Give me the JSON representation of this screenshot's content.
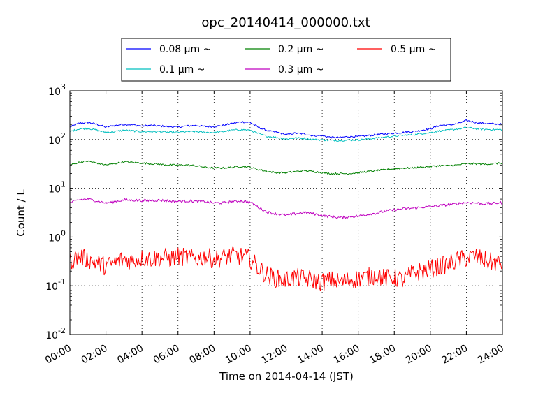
{
  "chart_data": {
    "type": "line",
    "title": "opc_20140414_000000.txt",
    "xlabel": "Time on 2014-04-14 (JST)",
    "ylabel": "Count / L",
    "x_tick_labels": [
      "00:00",
      "02:00",
      "04:00",
      "06:00",
      "08:00",
      "10:00",
      "12:00",
      "14:00",
      "16:00",
      "18:00",
      "20:00",
      "22:00",
      "24:00"
    ],
    "y_tick_labels": [
      {
        "base": "10",
        "exp": "-2"
      },
      {
        "base": "10",
        "exp": "-1"
      },
      {
        "base": "10",
        "exp": "0"
      },
      {
        "base": "10",
        "exp": "1"
      },
      {
        "base": "10",
        "exp": "2"
      },
      {
        "base": "10",
        "exp": "3"
      }
    ],
    "xlim_hours": [
      0,
      24
    ],
    "ylim": [
      0.01,
      1000
    ],
    "yscale": "log",
    "grid": true,
    "legend_position": "above plot, centered",
    "series": [
      {
        "name": "0.08 μm ~",
        "color": "#0000ff",
        "x": [
          0,
          0.5,
          1,
          1.5,
          2,
          2.5,
          3,
          3.5,
          4,
          4.5,
          5,
          5.5,
          6,
          6.5,
          7,
          7.5,
          8,
          8.5,
          9,
          9.5,
          10,
          10.5,
          11,
          11.5,
          12,
          12.5,
          13,
          13.5,
          14,
          14.5,
          15,
          15.5,
          16,
          16.5,
          17,
          17.5,
          18,
          18.5,
          19,
          19.5,
          20,
          20.5,
          21,
          21.5,
          22,
          22.5,
          23,
          23.5,
          24
        ],
        "values": [
          180,
          215,
          225,
          205,
          180,
          195,
          205,
          200,
          190,
          195,
          190,
          185,
          180,
          190,
          195,
          185,
          185,
          195,
          215,
          230,
          225,
          175,
          150,
          140,
          125,
          135,
          130,
          120,
          120,
          110,
          110,
          115,
          115,
          120,
          125,
          130,
          135,
          140,
          145,
          155,
          165,
          195,
          200,
          210,
          245,
          225,
          215,
          210,
          205
        ]
      },
      {
        "name": "0.1 μm ~",
        "color": "#00bfbf",
        "x": [
          0,
          0.5,
          1,
          1.5,
          2,
          2.5,
          3,
          3.5,
          4,
          4.5,
          5,
          5.5,
          6,
          6.5,
          7,
          7.5,
          8,
          8.5,
          9,
          9.5,
          10,
          10.5,
          11,
          11.5,
          12,
          12.5,
          13,
          13.5,
          14,
          14.5,
          15,
          15.5,
          16,
          16.5,
          17,
          17.5,
          18,
          18.5,
          19,
          19.5,
          20,
          20.5,
          21,
          21.5,
          22,
          22.5,
          23,
          23.5,
          24
        ],
        "values": [
          145,
          165,
          170,
          155,
          140,
          145,
          155,
          150,
          145,
          145,
          145,
          140,
          140,
          145,
          145,
          140,
          140,
          145,
          155,
          160,
          155,
          130,
          115,
          110,
          102,
          108,
          105,
          100,
          98,
          96,
          95,
          97,
          98,
          102,
          107,
          112,
          117,
          122,
          125,
          132,
          138,
          150,
          155,
          165,
          175,
          168,
          162,
          160,
          160
        ]
      },
      {
        "name": "0.2 μm ~",
        "color": "#008000",
        "x": [
          0,
          0.5,
          1,
          1.5,
          2,
          2.5,
          3,
          3.5,
          4,
          4.5,
          5,
          5.5,
          6,
          6.5,
          7,
          7.5,
          8,
          8.5,
          9,
          9.5,
          10,
          10.5,
          11,
          11.5,
          12,
          12.5,
          13,
          13.5,
          14,
          14.5,
          15,
          15.5,
          16,
          16.5,
          17,
          17.5,
          18,
          18.5,
          19,
          19.5,
          20,
          20.5,
          21,
          21.5,
          22,
          22.5,
          23,
          23.5,
          24
        ],
        "values": [
          30,
          34,
          36,
          33,
          30,
          32,
          35,
          34,
          33,
          32,
          31,
          30,
          30,
          30,
          29,
          27,
          26,
          26,
          27,
          28,
          27,
          24,
          22,
          21,
          21,
          22,
          23,
          22,
          21,
          20,
          20,
          20,
          21,
          22,
          23,
          24,
          25,
          26,
          26,
          27,
          28,
          29,
          29,
          30,
          32,
          32,
          31,
          32,
          33
        ]
      },
      {
        "name": "0.3 μm ~",
        "color": "#bf00bf",
        "x": [
          0,
          0.5,
          1,
          1.5,
          2,
          2.5,
          3,
          3.5,
          4,
          4.5,
          5,
          5.5,
          6,
          6.5,
          7,
          7.5,
          8,
          8.5,
          9,
          9.5,
          10,
          10.5,
          11,
          11.5,
          12,
          12.5,
          13,
          13.5,
          14,
          14.5,
          15,
          15.5,
          16,
          16.5,
          17,
          17.5,
          18,
          18.5,
          19,
          19.5,
          20,
          20.5,
          21,
          21.5,
          22,
          22.5,
          23,
          23.5,
          24
        ],
        "values": [
          5.0,
          5.8,
          6.0,
          5.5,
          5.0,
          5.3,
          5.8,
          5.7,
          5.6,
          5.6,
          5.7,
          5.5,
          5.4,
          5.5,
          5.4,
          5.3,
          5.0,
          5.0,
          5.3,
          5.5,
          5.2,
          4.0,
          3.2,
          3.0,
          2.8,
          3.0,
          3.2,
          3.0,
          2.8,
          2.6,
          2.5,
          2.6,
          2.7,
          2.9,
          3.1,
          3.4,
          3.6,
          3.8,
          3.9,
          4.1,
          4.2,
          4.4,
          4.6,
          4.8,
          5.1,
          5.0,
          4.8,
          4.9,
          5.1
        ]
      },
      {
        "name": "0.5 μm ~",
        "color": "#ff0000",
        "x": [
          0,
          0.5,
          1,
          1.5,
          2,
          2.5,
          3,
          3.5,
          4,
          4.5,
          5,
          5.5,
          6,
          6.5,
          7,
          7.5,
          8,
          8.5,
          9,
          9.5,
          10,
          10.5,
          11,
          11.5,
          12,
          12.5,
          13,
          13.5,
          14,
          14.5,
          15,
          15.5,
          16,
          16.5,
          17,
          17.5,
          18,
          18.5,
          19,
          19.5,
          20,
          20.5,
          21,
          21.5,
          22,
          22.5,
          23,
          23.5,
          24
        ],
        "values": [
          0.32,
          0.4,
          0.35,
          0.3,
          0.25,
          0.3,
          0.35,
          0.33,
          0.37,
          0.36,
          0.38,
          0.36,
          0.4,
          0.38,
          0.36,
          0.4,
          0.35,
          0.38,
          0.42,
          0.4,
          0.36,
          0.22,
          0.16,
          0.14,
          0.13,
          0.15,
          0.14,
          0.13,
          0.12,
          0.13,
          0.12,
          0.13,
          0.14,
          0.15,
          0.17,
          0.14,
          0.15,
          0.13,
          0.18,
          0.2,
          0.22,
          0.25,
          0.28,
          0.33,
          0.37,
          0.4,
          0.33,
          0.3,
          0.28
        ]
      }
    ]
  }
}
